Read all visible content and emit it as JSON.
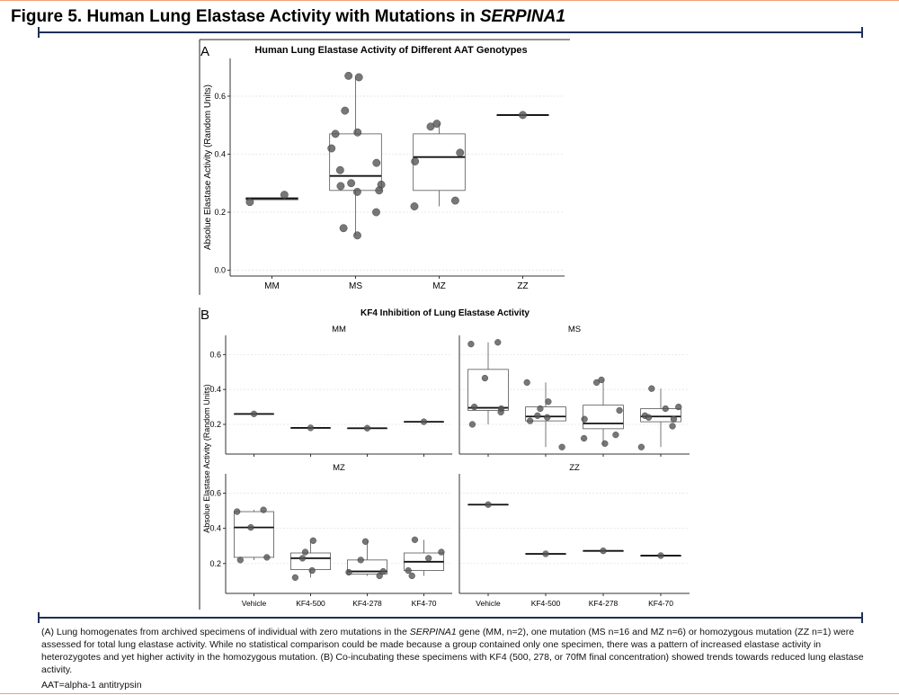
{
  "figure": {
    "title_prefix": "Figure 5. Human Lung Elastase Activity with Mutations in ",
    "title_gene": "SERPINA1"
  },
  "caption": {
    "p1": "(A) Lung homogenates from archived specimens of individual with zero mutations in the ",
    "gene": "SERPINA1",
    "p2": " gene (MM, n=2), one mutation (MS n=16 and MZ n=6) or homozygous mutation (ZZ n=1) were assessed for total lung elastase activity. While no statistical comparison could be made because a group contained only one specimen, there was a pattern of increased elastase activity in heterozygotes and yet higher activity in the homozygous mutation. (B) Co-incubating these specimens with KF4 (500, 278, or 70fM final concentration) showed trends towards reduced lung elastase activity.",
    "abbrev": "AAT=alpha-1 antitrypsin"
  },
  "colors": {
    "rule": "#1f2f57",
    "frame": "#f1a27a",
    "point": "#555555"
  },
  "chart_data": [
    {
      "type": "box",
      "panel": "A",
      "title": "Human Lung Elastase Activity of Different AAT Genotypes",
      "ylabel": "Absolue Elastase Activity (Random Units)",
      "ylim": [
        -0.02,
        0.73
      ],
      "yticks": [
        0.0,
        0.2,
        0.4,
        0.6
      ],
      "ytick_labels": [
        "0.0",
        "0.2",
        "0.4",
        "0.6"
      ],
      "categories": [
        "MM",
        "MS",
        "MZ",
        "ZZ"
      ],
      "boxes": [
        {
          "q1": 0.243,
          "median": 0.247,
          "q3": 0.25,
          "wmin": 0.243,
          "wmax": 0.25
        },
        {
          "q1": 0.275,
          "median": 0.325,
          "q3": 0.47,
          "wmin": 0.12,
          "wmax": 0.665
        },
        {
          "q1": 0.275,
          "median": 0.39,
          "q3": 0.47,
          "wmin": 0.22,
          "wmax": 0.505
        },
        {
          "q1": 0.535,
          "median": 0.535,
          "q3": 0.535,
          "wmin": 0.535,
          "wmax": 0.535
        }
      ],
      "points": [
        [
          0.26,
          0.235
        ],
        [
          0.665,
          0.67,
          0.55,
          0.475,
          0.47,
          0.42,
          0.37,
          0.345,
          0.3,
          0.295,
          0.29,
          0.27,
          0.275,
          0.2,
          0.145,
          0.12
        ],
        [
          0.505,
          0.495,
          0.405,
          0.375,
          0.24,
          0.22
        ],
        [
          0.535
        ]
      ]
    },
    {
      "type": "box",
      "panel": "B",
      "title": "KF4 Inhibition of Lung Elastase Activity",
      "ylabel": "Absolue Elastase Activity (Random Units)",
      "categories": [
        "Vehicle",
        "KF4-500",
        "KF4-278",
        "KF4-70"
      ],
      "ylim": [
        0.03,
        0.71
      ],
      "yticks": [
        0.2,
        0.4,
        0.6
      ],
      "ytick_labels": [
        "0.2",
        "0.4",
        "0.6"
      ],
      "facets": [
        {
          "name": "MM",
          "boxes": [
            {
              "q1": 0.26,
              "median": 0.26,
              "q3": 0.26,
              "wmin": 0.26,
              "wmax": 0.26
            },
            {
              "q1": 0.18,
              "median": 0.18,
              "q3": 0.18,
              "wmin": 0.18,
              "wmax": 0.18
            },
            {
              "q1": 0.178,
              "median": 0.178,
              "q3": 0.178,
              "wmin": 0.178,
              "wmax": 0.178
            },
            {
              "q1": 0.215,
              "median": 0.215,
              "q3": 0.215,
              "wmin": 0.215,
              "wmax": 0.215
            }
          ],
          "points": [
            [
              0.26
            ],
            [
              0.18
            ],
            [
              0.178
            ],
            [
              0.215
            ]
          ]
        },
        {
          "name": "MS",
          "boxes": [
            {
              "q1": 0.28,
              "median": 0.295,
              "q3": 0.515,
              "wmin": 0.2,
              "wmax": 0.67
            },
            {
              "q1": 0.22,
              "median": 0.245,
              "q3": 0.3,
              "wmin": 0.07,
              "wmax": 0.44
            },
            {
              "q1": 0.175,
              "median": 0.205,
              "q3": 0.31,
              "wmin": 0.08,
              "wmax": 0.455
            },
            {
              "q1": 0.215,
              "median": 0.245,
              "q3": 0.29,
              "wmin": 0.07,
              "wmax": 0.405
            }
          ],
          "points": [
            [
              0.67,
              0.66,
              0.465,
              0.29,
              0.3,
              0.27,
              0.2
            ],
            [
              0.33,
              0.29,
              0.25,
              0.24,
              0.22,
              0.44,
              0.07
            ],
            [
              0.455,
              0.44,
              0.28,
              0.23,
              0.14,
              0.12,
              0.09
            ],
            [
              0.405,
              0.3,
              0.29,
              0.25,
              0.24,
              0.23,
              0.19,
              0.07
            ]
          ]
        },
        {
          "name": "MZ",
          "boxes": [
            {
              "q1": 0.235,
              "median": 0.405,
              "q3": 0.495,
              "wmin": 0.22,
              "wmax": 0.505
            },
            {
              "q1": 0.165,
              "median": 0.23,
              "q3": 0.26,
              "wmin": 0.12,
              "wmax": 0.33
            },
            {
              "q1": 0.14,
              "median": 0.155,
              "q3": 0.22,
              "wmin": 0.13,
              "wmax": 0.325
            },
            {
              "q1": 0.16,
              "median": 0.21,
              "q3": 0.26,
              "wmin": 0.13,
              "wmax": 0.335
            }
          ],
          "points": [
            [
              0.505,
              0.495,
              0.405,
              0.235,
              0.22
            ],
            [
              0.33,
              0.265,
              0.23,
              0.16,
              0.12
            ],
            [
              0.325,
              0.22,
              0.155,
              0.15,
              0.13
            ],
            [
              0.335,
              0.265,
              0.23,
              0.16,
              0.13
            ]
          ]
        },
        {
          "name": "ZZ",
          "boxes": [
            {
              "q1": 0.535,
              "median": 0.535,
              "q3": 0.535,
              "wmin": 0.535,
              "wmax": 0.535
            },
            {
              "q1": 0.255,
              "median": 0.255,
              "q3": 0.255,
              "wmin": 0.255,
              "wmax": 0.255
            },
            {
              "q1": 0.272,
              "median": 0.272,
              "q3": 0.272,
              "wmin": 0.272,
              "wmax": 0.272
            },
            {
              "q1": 0.245,
              "median": 0.245,
              "q3": 0.245,
              "wmin": 0.245,
              "wmax": 0.245
            }
          ],
          "points": [
            [
              0.535
            ],
            [
              0.255
            ],
            [
              0.272
            ],
            [
              0.245
            ]
          ]
        }
      ]
    }
  ]
}
